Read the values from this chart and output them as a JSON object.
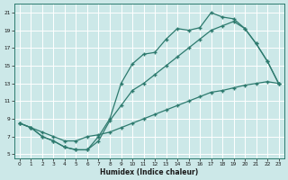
{
  "xlabel": "Humidex (Indice chaleur)",
  "bg_color": "#cce8e8",
  "grid_color": "#aacccc",
  "line_color": "#2d7a6e",
  "line1_x": [
    0,
    1,
    2,
    3,
    4,
    5,
    6,
    7,
    8,
    9,
    10,
    11,
    12,
    13,
    14,
    15,
    16,
    17,
    18,
    19,
    20,
    21,
    22,
    23
  ],
  "line1_y": [
    8.5,
    8.0,
    7.0,
    6.5,
    5.8,
    5.5,
    5.5,
    7.0,
    9.0,
    13.0,
    15.2,
    16.3,
    16.5,
    18.0,
    19.2,
    19.0,
    19.3,
    21.0,
    20.5,
    20.3,
    19.2,
    17.5,
    15.5,
    13.0
  ],
  "line2_x": [
    0,
    1,
    2,
    3,
    4,
    5,
    6,
    7,
    8,
    9,
    10,
    11,
    12,
    13,
    14,
    15,
    16,
    17,
    18,
    19,
    20,
    21,
    22,
    23
  ],
  "line2_y": [
    8.5,
    8.0,
    7.0,
    6.5,
    5.8,
    5.5,
    5.5,
    6.5,
    8.8,
    10.5,
    12.2,
    13.0,
    14.0,
    15.0,
    16.0,
    17.0,
    18.0,
    19.0,
    19.5,
    20.0,
    19.2,
    17.5,
    15.5,
    13.0
  ],
  "line3_x": [
    0,
    1,
    2,
    3,
    4,
    5,
    6,
    7,
    8,
    9,
    10,
    11,
    12,
    13,
    14,
    15,
    16,
    17,
    18,
    19,
    20,
    21,
    22,
    23
  ],
  "line3_y": [
    8.5,
    8.0,
    7.5,
    7.0,
    6.5,
    6.5,
    7.0,
    7.2,
    7.5,
    8.0,
    8.5,
    9.0,
    9.5,
    10.0,
    10.5,
    11.0,
    11.5,
    12.0,
    12.2,
    12.5,
    12.8,
    13.0,
    13.2,
    13.0
  ],
  "xlim": [
    -0.5,
    23.5
  ],
  "ylim": [
    4.5,
    22.0
  ],
  "xticks": [
    0,
    1,
    2,
    3,
    4,
    5,
    6,
    7,
    8,
    9,
    10,
    11,
    12,
    13,
    14,
    15,
    16,
    17,
    18,
    19,
    20,
    21,
    22,
    23
  ],
  "yticks": [
    5,
    7,
    9,
    11,
    13,
    15,
    17,
    19,
    21
  ],
  "marker": "+",
  "markersize": 3.5,
  "linewidth": 0.9,
  "tick_fontsize": 4.2,
  "xlabel_fontsize": 5.5
}
